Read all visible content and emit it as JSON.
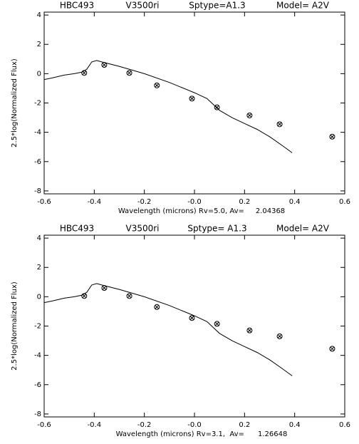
{
  "chart_data": [
    {
      "type": "line",
      "title": [
        "HBC493",
        "V3500ri",
        "Sptype=A1.3",
        "Model= A2V"
      ],
      "xlabel": "Wavelength (microns) Rv=5.0, Av=     2.04368",
      "ylabel": "2.5*log(Normalized Flux)",
      "xlim": [
        -0.6,
        0.6
      ],
      "xticks": [
        -0.6,
        -0.4,
        -0.2,
        {
          "value": 0,
          "label": "-0.0"
        },
        0.2,
        0.4,
        0.6
      ],
      "ylim": [
        -8.2,
        4.2
      ],
      "yticks": [
        -8,
        -6,
        -4,
        -2,
        0,
        2,
        4
      ],
      "series": [
        {
          "style": "line",
          "color": "#000000",
          "x": [
            -0.6,
            -0.57,
            -0.52,
            -0.48,
            -0.45,
            -0.43,
            -0.41,
            -0.39,
            -0.37,
            -0.3,
            -0.2,
            -0.1,
            0.0,
            0.05,
            0.1,
            0.15,
            0.2,
            0.25,
            0.3,
            0.35,
            0.39
          ],
          "values": [
            -0.4,
            -0.3,
            -0.1,
            0.0,
            0.1,
            0.3,
            0.8,
            0.9,
            0.8,
            0.5,
            0.0,
            -0.6,
            -1.3,
            -1.7,
            -2.5,
            -3.0,
            -3.4,
            -3.8,
            -4.3,
            -4.9,
            -5.4
          ]
        },
        {
          "style": "circle-x",
          "color": "#000000",
          "x": [
            -0.44,
            -0.36,
            -0.26,
            -0.15,
            -0.01,
            0.09,
            0.22,
            0.34,
            0.55
          ],
          "values": [
            0.05,
            0.6,
            0.05,
            -0.8,
            -1.7,
            -2.3,
            -2.85,
            -3.45,
            -4.3
          ]
        }
      ]
    },
    {
      "type": "line",
      "title": [
        "HBC493",
        "V3500ri",
        "Sptype= A1.3",
        "Model= A2V"
      ],
      "xlabel": "Wavelength (microns) Rv=3.1,  Av=      1.26648",
      "ylabel": "2.5*log(Normalized Flux)",
      "xlim": [
        -0.6,
        0.6
      ],
      "xticks": [
        -0.6,
        -0.4,
        -0.2,
        {
          "value": 0,
          "label": "-0.0"
        },
        0.2,
        0.4,
        0.6
      ],
      "ylim": [
        -8.2,
        4.2
      ],
      "yticks": [
        -8,
        -6,
        -4,
        -2,
        0,
        2,
        4
      ],
      "series": [
        {
          "style": "line",
          "color": "#000000",
          "x": [
            -0.6,
            -0.57,
            -0.52,
            -0.48,
            -0.45,
            -0.43,
            -0.41,
            -0.39,
            -0.37,
            -0.3,
            -0.2,
            -0.1,
            0.0,
            0.05,
            0.1,
            0.15,
            0.2,
            0.25,
            0.3,
            0.35,
            0.39
          ],
          "values": [
            -0.4,
            -0.3,
            -0.1,
            0.0,
            0.1,
            0.3,
            0.8,
            0.9,
            0.8,
            0.5,
            0.0,
            -0.6,
            -1.3,
            -1.7,
            -2.5,
            -3.0,
            -3.4,
            -3.8,
            -4.3,
            -4.9,
            -5.4
          ]
        },
        {
          "style": "circle-x",
          "color": "#000000",
          "x": [
            -0.44,
            -0.36,
            -0.26,
            -0.15,
            -0.01,
            0.09,
            0.22,
            0.34,
            0.55
          ],
          "values": [
            0.05,
            0.6,
            0.05,
            -0.7,
            -1.45,
            -1.85,
            -2.3,
            -2.7,
            -3.55
          ]
        }
      ]
    }
  ]
}
